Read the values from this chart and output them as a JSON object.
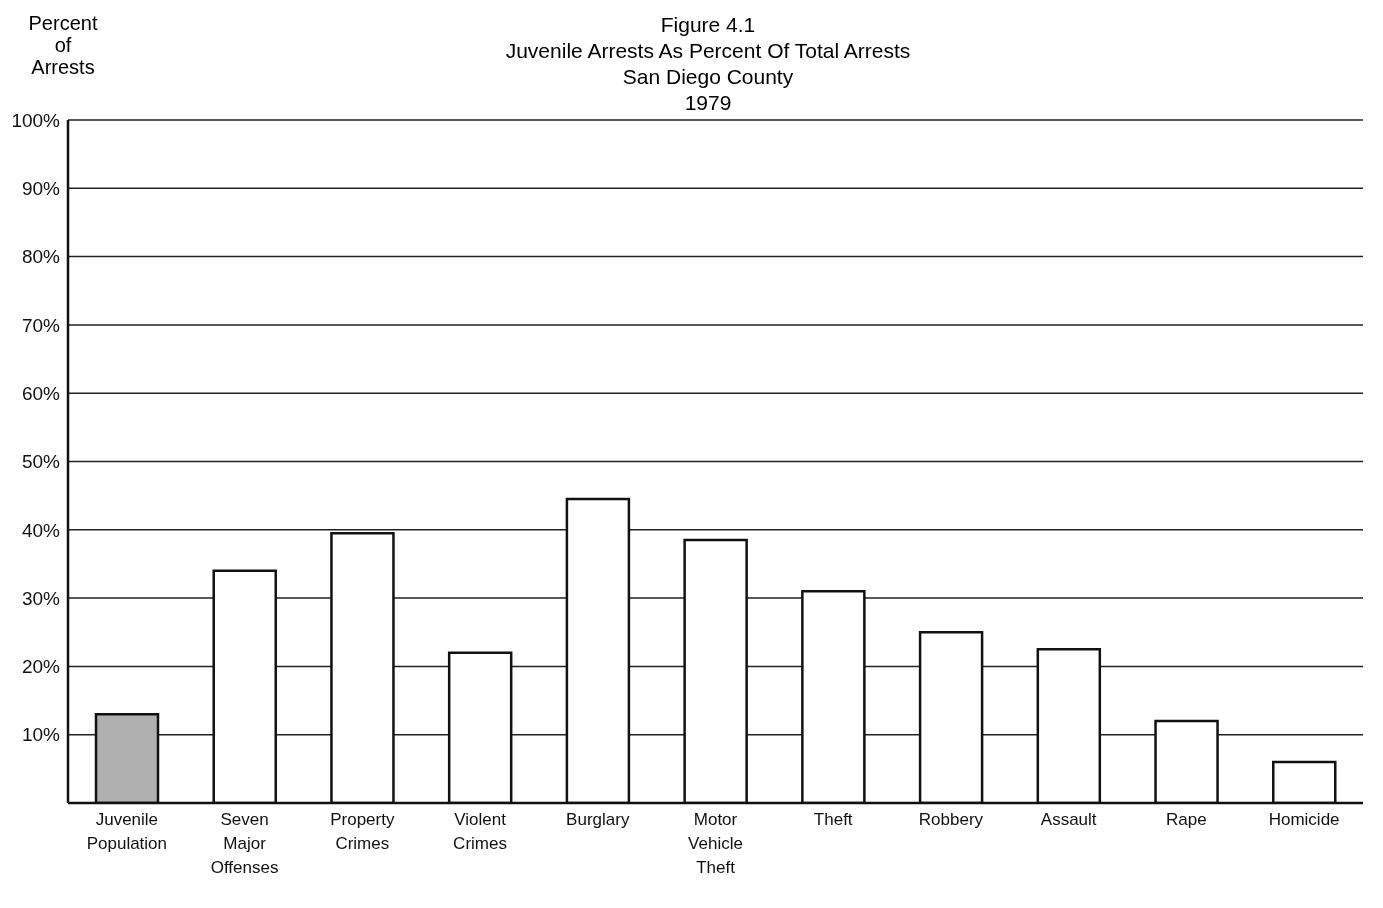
{
  "chart_data": {
    "type": "bar",
    "title": "Figure 4.1",
    "subtitle": "Juvenile Arrests As Percent Of Total Arrests\nSan Diego County\n1979",
    "ylabel": "Percent of Arrests",
    "categories": [
      "Juvenile Population",
      "Seven Major Offenses",
      "Property Crimes",
      "Violent Crimes",
      "Burglary",
      "Motor Vehicle Theft",
      "Theft",
      "Robbery",
      "Assault",
      "Rape",
      "Homicide"
    ],
    "values": [
      13,
      34,
      39.5,
      22,
      44.5,
      38.5,
      31,
      25,
      22.5,
      12,
      6
    ],
    "colors": [
      "#b0b0b0",
      "#ffffff",
      "#ffffff",
      "#ffffff",
      "#ffffff",
      "#ffffff",
      "#ffffff",
      "#ffffff",
      "#ffffff",
      "#ffffff",
      "#ffffff"
    ],
    "ylim": [
      0,
      100
    ],
    "yticks": [
      {
        "value": 10,
        "label": "10%"
      },
      {
        "value": 20,
        "label": "20%"
      },
      {
        "value": 30,
        "label": "30%"
      },
      {
        "value": 40,
        "label": "40%"
      },
      {
        "value": 50,
        "label": "50%"
      },
      {
        "value": 60,
        "label": "60%"
      },
      {
        "value": 70,
        "label": "70%"
      },
      {
        "value": 80,
        "label": "80%"
      },
      {
        "value": 90,
        "label": "90%"
      },
      {
        "value": 100,
        "label": "100%"
      }
    ],
    "grid": "y",
    "legend": false
  }
}
